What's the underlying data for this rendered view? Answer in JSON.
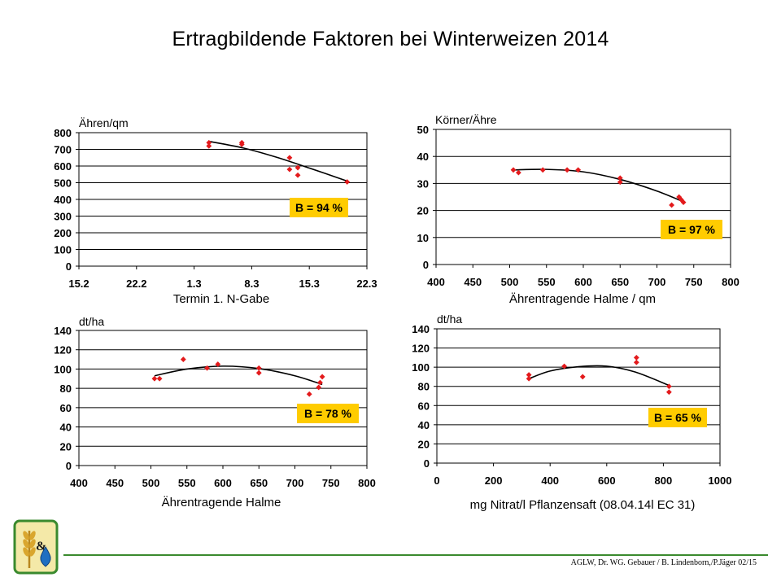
{
  "title": "Ertragbildende Faktoren bei Winterweizen 2014",
  "footer": {
    "credit": "AGLW, Dr. WG. Gebauer / B. Lindenborn,/P.Jäger 02/15"
  },
  "colors": {
    "point": "#e31a1c",
    "badge": "#ffcc00",
    "trend": "#000000",
    "footer_line": "#3a8a2e"
  },
  "logo": {
    "icon": "wheat-and-water-drop-logo",
    "text": "&"
  },
  "chart_data": [
    {
      "type": "scatter",
      "ylabel": "Ähren/qm",
      "xlabel": "Termin 1. N-Gabe",
      "x_tick_labels": [
        "15.2",
        "22.2",
        "1.3",
        "8.3",
        "15.3",
        "22.3"
      ],
      "ylim": [
        0,
        800
      ],
      "y_ticks": [
        0,
        100,
        200,
        300,
        400,
        500,
        600,
        700,
        800
      ],
      "xlim": [
        0,
        35
      ],
      "x_ticks": [
        0,
        7,
        14,
        21,
        28,
        35
      ],
      "badge": "B = 94 %",
      "points": [
        {
          "x": 15.8,
          "y": 740
        },
        {
          "x": 15.8,
          "y": 720
        },
        {
          "x": 19.8,
          "y": 740
        },
        {
          "x": 19.8,
          "y": 730
        },
        {
          "x": 25.6,
          "y": 650
        },
        {
          "x": 25.6,
          "y": 580
        },
        {
          "x": 26.6,
          "y": 590
        },
        {
          "x": 26.6,
          "y": 545
        },
        {
          "x": 32.6,
          "y": 505
        }
      ],
      "trend": [
        {
          "x": 15.8,
          "y": 748
        },
        {
          "x": 20,
          "y": 708
        },
        {
          "x": 24,
          "y": 653
        },
        {
          "x": 28,
          "y": 588
        },
        {
          "x": 32.6,
          "y": 510
        }
      ],
      "grid": true
    },
    {
      "type": "scatter",
      "ylabel": "Körner/Ähre",
      "xlabel": "Ährentragende Halme / qm",
      "ylim": [
        0,
        50
      ],
      "y_ticks": [
        0,
        10,
        20,
        30,
        40,
        50
      ],
      "xlim": [
        400,
        800
      ],
      "x_ticks": [
        400,
        450,
        500,
        550,
        600,
        650,
        700,
        750,
        800
      ],
      "badge": "B = 97 %",
      "points": [
        {
          "x": 505,
          "y": 35
        },
        {
          "x": 512,
          "y": 34
        },
        {
          "x": 545,
          "y": 35
        },
        {
          "x": 578,
          "y": 35
        },
        {
          "x": 593,
          "y": 35
        },
        {
          "x": 650,
          "y": 32
        },
        {
          "x": 650,
          "y": 30.5
        },
        {
          "x": 720,
          "y": 22
        },
        {
          "x": 730,
          "y": 25
        },
        {
          "x": 733,
          "y": 24
        },
        {
          "x": 736,
          "y": 23
        }
      ],
      "trend": [
        {
          "x": 505,
          "y": 35
        },
        {
          "x": 550,
          "y": 35.2
        },
        {
          "x": 600,
          "y": 34.3
        },
        {
          "x": 650,
          "y": 31.5
        },
        {
          "x": 700,
          "y": 27.2
        },
        {
          "x": 738,
          "y": 23
        }
      ],
      "grid": true
    },
    {
      "type": "scatter",
      "ylabel": "dt/ha",
      "xlabel": "Ährentragende Halme",
      "ylim": [
        0,
        140
      ],
      "y_ticks": [
        0,
        20,
        40,
        60,
        80,
        100,
        120,
        140
      ],
      "xlim": [
        400,
        800
      ],
      "x_ticks": [
        400,
        450,
        500,
        550,
        600,
        650,
        700,
        750,
        800
      ],
      "badge": "B = 78 %",
      "points": [
        {
          "x": 505,
          "y": 90
        },
        {
          "x": 512,
          "y": 90
        },
        {
          "x": 545,
          "y": 110
        },
        {
          "x": 578,
          "y": 101
        },
        {
          "x": 593,
          "y": 105
        },
        {
          "x": 650,
          "y": 101
        },
        {
          "x": 650,
          "y": 96
        },
        {
          "x": 720,
          "y": 74
        },
        {
          "x": 733,
          "y": 81
        },
        {
          "x": 735,
          "y": 86
        },
        {
          "x": 738,
          "y": 92
        }
      ],
      "trend": [
        {
          "x": 505,
          "y": 93
        },
        {
          "x": 550,
          "y": 100
        },
        {
          "x": 600,
          "y": 103
        },
        {
          "x": 650,
          "y": 100.5
        },
        {
          "x": 700,
          "y": 93
        },
        {
          "x": 738,
          "y": 84
        }
      ],
      "grid": true
    },
    {
      "type": "scatter",
      "ylabel": "dt/ha",
      "xlabel": "mg Nitrat/l Pflanzensaft (08.04.14l EC 31)",
      "ylim": [
        0,
        140
      ],
      "y_ticks": [
        0,
        20,
        40,
        60,
        80,
        100,
        120,
        140
      ],
      "xlim": [
        0,
        1000
      ],
      "x_ticks": [
        0,
        200,
        400,
        600,
        800,
        1000
      ],
      "badge": "B = 65 %",
      "points": [
        {
          "x": 325,
          "y": 92
        },
        {
          "x": 325,
          "y": 88
        },
        {
          "x": 450,
          "y": 101
        },
        {
          "x": 515,
          "y": 90
        },
        {
          "x": 705,
          "y": 110
        },
        {
          "x": 705,
          "y": 105
        },
        {
          "x": 820,
          "y": 80
        },
        {
          "x": 820,
          "y": 74
        }
      ],
      "trend": [
        {
          "x": 325,
          "y": 88
        },
        {
          "x": 400,
          "y": 96
        },
        {
          "x": 500,
          "y": 100.5
        },
        {
          "x": 600,
          "y": 101
        },
        {
          "x": 700,
          "y": 95
        },
        {
          "x": 820,
          "y": 81
        }
      ],
      "grid": true
    }
  ]
}
